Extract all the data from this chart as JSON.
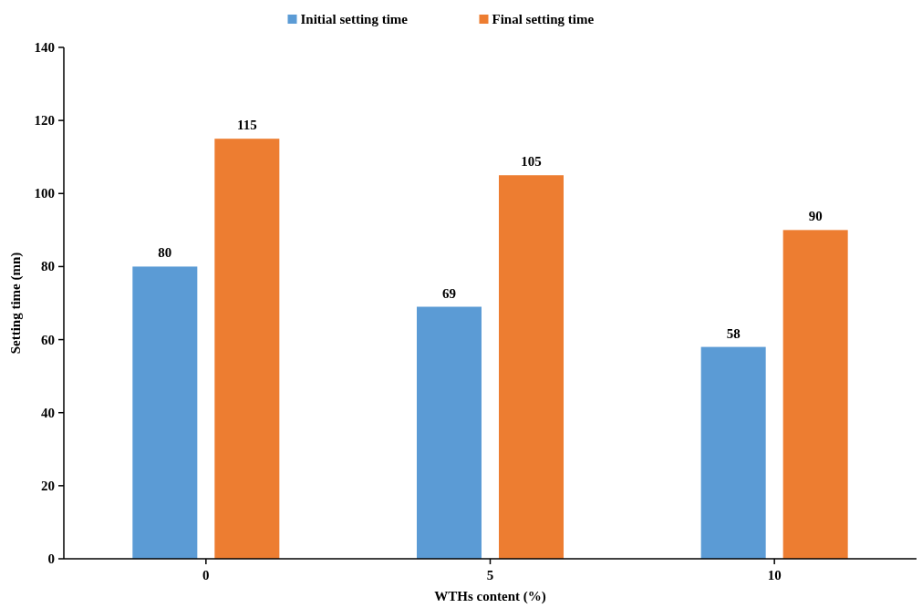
{
  "chart_data": {
    "type": "bar",
    "xlabel": "WTHs content (%)",
    "ylabel": "Setting time (mn)",
    "categories": [
      "0",
      "5",
      "10"
    ],
    "series": [
      {
        "name": "Initial setting time",
        "color": "#5b9bd5",
        "values": [
          80,
          69,
          58
        ]
      },
      {
        "name": "Final setting time",
        "color": "#ed7d31",
        "values": [
          115,
          105,
          90
        ]
      }
    ],
    "ylim": [
      0,
      140
    ],
    "yticks": [
      0,
      20,
      40,
      60,
      80,
      100,
      120,
      140
    ],
    "data_labels": true,
    "legend": "top",
    "grid": false
  }
}
